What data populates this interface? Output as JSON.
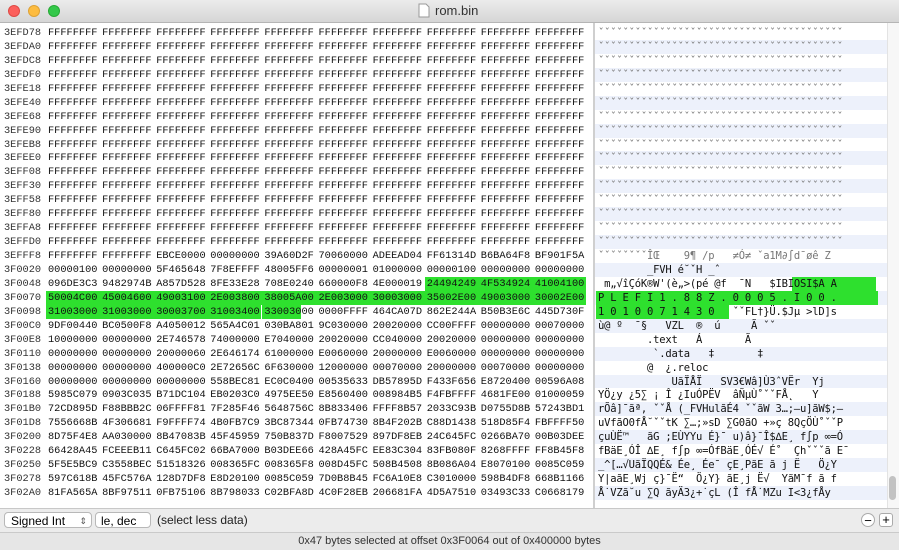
{
  "window": {
    "title": "rom.bin"
  },
  "rows": [
    {
      "offset": "3EFD78",
      "hex": [
        "FFFFFFFF",
        "FFFFFFFF",
        "FFFFFFFF",
        "FFFFFFFF",
        "FFFFFFFF",
        "FFFFFFFF",
        "FFFFFFFF",
        "FFFFFFFF",
        "FFFFFFFF",
        "FFFFFFFF"
      ],
      "ascii": "ˇˇˇˇˇˇˇˇˇˇˇˇˇˇˇˇˇˇˇˇˇˇˇˇˇˇˇˇˇˇˇˇˇˇˇˇˇˇˇˇ"
    },
    {
      "offset": "3EFDA0",
      "hex": [
        "FFFFFFFF",
        "FFFFFFFF",
        "FFFFFFFF",
        "FFFFFFFF",
        "FFFFFFFF",
        "FFFFFFFF",
        "FFFFFFFF",
        "FFFFFFFF",
        "FFFFFFFF",
        "FFFFFFFF"
      ],
      "ascii": "ˇˇˇˇˇˇˇˇˇˇˇˇˇˇˇˇˇˇˇˇˇˇˇˇˇˇˇˇˇˇˇˇˇˇˇˇˇˇˇˇ"
    },
    {
      "offset": "3EFDC8",
      "hex": [
        "FFFFFFFF",
        "FFFFFFFF",
        "FFFFFFFF",
        "FFFFFFFF",
        "FFFFFFFF",
        "FFFFFFFF",
        "FFFFFFFF",
        "FFFFFFFF",
        "FFFFFFFF",
        "FFFFFFFF"
      ],
      "ascii": "ˇˇˇˇˇˇˇˇˇˇˇˇˇˇˇˇˇˇˇˇˇˇˇˇˇˇˇˇˇˇˇˇˇˇˇˇˇˇˇˇ"
    },
    {
      "offset": "3EFDF0",
      "hex": [
        "FFFFFFFF",
        "FFFFFFFF",
        "FFFFFFFF",
        "FFFFFFFF",
        "FFFFFFFF",
        "FFFFFFFF",
        "FFFFFFFF",
        "FFFFFFFF",
        "FFFFFFFF",
        "FFFFFFFF"
      ],
      "ascii": "ˇˇˇˇˇˇˇˇˇˇˇˇˇˇˇˇˇˇˇˇˇˇˇˇˇˇˇˇˇˇˇˇˇˇˇˇˇˇˇˇ"
    },
    {
      "offset": "3EFE18",
      "hex": [
        "FFFFFFFF",
        "FFFFFFFF",
        "FFFFFFFF",
        "FFFFFFFF",
        "FFFFFFFF",
        "FFFFFFFF",
        "FFFFFFFF",
        "FFFFFFFF",
        "FFFFFFFF",
        "FFFFFFFF"
      ],
      "ascii": "ˇˇˇˇˇˇˇˇˇˇˇˇˇˇˇˇˇˇˇˇˇˇˇˇˇˇˇˇˇˇˇˇˇˇˇˇˇˇˇˇ"
    },
    {
      "offset": "3EFE40",
      "hex": [
        "FFFFFFFF",
        "FFFFFFFF",
        "FFFFFFFF",
        "FFFFFFFF",
        "FFFFFFFF",
        "FFFFFFFF",
        "FFFFFFFF",
        "FFFFFFFF",
        "FFFFFFFF",
        "FFFFFFFF"
      ],
      "ascii": "ˇˇˇˇˇˇˇˇˇˇˇˇˇˇˇˇˇˇˇˇˇˇˇˇˇˇˇˇˇˇˇˇˇˇˇˇˇˇˇˇ"
    },
    {
      "offset": "3EFE68",
      "hex": [
        "FFFFFFFF",
        "FFFFFFFF",
        "FFFFFFFF",
        "FFFFFFFF",
        "FFFFFFFF",
        "FFFFFFFF",
        "FFFFFFFF",
        "FFFFFFFF",
        "FFFFFFFF",
        "FFFFFFFF"
      ],
      "ascii": "ˇˇˇˇˇˇˇˇˇˇˇˇˇˇˇˇˇˇˇˇˇˇˇˇˇˇˇˇˇˇˇˇˇˇˇˇˇˇˇˇ"
    },
    {
      "offset": "3EFE90",
      "hex": [
        "FFFFFFFF",
        "FFFFFFFF",
        "FFFFFFFF",
        "FFFFFFFF",
        "FFFFFFFF",
        "FFFFFFFF",
        "FFFFFFFF",
        "FFFFFFFF",
        "FFFFFFFF",
        "FFFFFFFF"
      ],
      "ascii": "ˇˇˇˇˇˇˇˇˇˇˇˇˇˇˇˇˇˇˇˇˇˇˇˇˇˇˇˇˇˇˇˇˇˇˇˇˇˇˇˇ"
    },
    {
      "offset": "3EFEB8",
      "hex": [
        "FFFFFFFF",
        "FFFFFFFF",
        "FFFFFFFF",
        "FFFFFFFF",
        "FFFFFFFF",
        "FFFFFFFF",
        "FFFFFFFF",
        "FFFFFFFF",
        "FFFFFFFF",
        "FFFFFFFF"
      ],
      "ascii": "ˇˇˇˇˇˇˇˇˇˇˇˇˇˇˇˇˇˇˇˇˇˇˇˇˇˇˇˇˇˇˇˇˇˇˇˇˇˇˇˇ"
    },
    {
      "offset": "3EFEE0",
      "hex": [
        "FFFFFFFF",
        "FFFFFFFF",
        "FFFFFFFF",
        "FFFFFFFF",
        "FFFFFFFF",
        "FFFFFFFF",
        "FFFFFFFF",
        "FFFFFFFF",
        "FFFFFFFF",
        "FFFFFFFF"
      ],
      "ascii": "ˇˇˇˇˇˇˇˇˇˇˇˇˇˇˇˇˇˇˇˇˇˇˇˇˇˇˇˇˇˇˇˇˇˇˇˇˇˇˇˇ"
    },
    {
      "offset": "3EFF08",
      "hex": [
        "FFFFFFFF",
        "FFFFFFFF",
        "FFFFFFFF",
        "FFFFFFFF",
        "FFFFFFFF",
        "FFFFFFFF",
        "FFFFFFFF",
        "FFFFFFFF",
        "FFFFFFFF",
        "FFFFFFFF"
      ],
      "ascii": "ˇˇˇˇˇˇˇˇˇˇˇˇˇˇˇˇˇˇˇˇˇˇˇˇˇˇˇˇˇˇˇˇˇˇˇˇˇˇˇˇ"
    },
    {
      "offset": "3EFF30",
      "hex": [
        "FFFFFFFF",
        "FFFFFFFF",
        "FFFFFFFF",
        "FFFFFFFF",
        "FFFFFFFF",
        "FFFFFFFF",
        "FFFFFFFF",
        "FFFFFFFF",
        "FFFFFFFF",
        "FFFFFFFF"
      ],
      "ascii": "ˇˇˇˇˇˇˇˇˇˇˇˇˇˇˇˇˇˇˇˇˇˇˇˇˇˇˇˇˇˇˇˇˇˇˇˇˇˇˇˇ"
    },
    {
      "offset": "3EFF58",
      "hex": [
        "FFFFFFFF",
        "FFFFFFFF",
        "FFFFFFFF",
        "FFFFFFFF",
        "FFFFFFFF",
        "FFFFFFFF",
        "FFFFFFFF",
        "FFFFFFFF",
        "FFFFFFFF",
        "FFFFFFFF"
      ],
      "ascii": "ˇˇˇˇˇˇˇˇˇˇˇˇˇˇˇˇˇˇˇˇˇˇˇˇˇˇˇˇˇˇˇˇˇˇˇˇˇˇˇˇ"
    },
    {
      "offset": "3EFF80",
      "hex": [
        "FFFFFFFF",
        "FFFFFFFF",
        "FFFFFFFF",
        "FFFFFFFF",
        "FFFFFFFF",
        "FFFFFFFF",
        "FFFFFFFF",
        "FFFFFFFF",
        "FFFFFFFF",
        "FFFFFFFF"
      ],
      "ascii": "ˇˇˇˇˇˇˇˇˇˇˇˇˇˇˇˇˇˇˇˇˇˇˇˇˇˇˇˇˇˇˇˇˇˇˇˇˇˇˇˇ"
    },
    {
      "offset": "3EFFA8",
      "hex": [
        "FFFFFFFF",
        "FFFFFFFF",
        "FFFFFFFF",
        "FFFFFFFF",
        "FFFFFFFF",
        "FFFFFFFF",
        "FFFFFFFF",
        "FFFFFFFF",
        "FFFFFFFF",
        "FFFFFFFF"
      ],
      "ascii": "ˇˇˇˇˇˇˇˇˇˇˇˇˇˇˇˇˇˇˇˇˇˇˇˇˇˇˇˇˇˇˇˇˇˇˇˇˇˇˇˇ"
    },
    {
      "offset": "3EFFD0",
      "hex": [
        "FFFFFFFF",
        "FFFFFFFF",
        "FFFFFFFF",
        "FFFFFFFF",
        "FFFFFFFF",
        "FFFFFFFF",
        "FFFFFFFF",
        "FFFFFFFF",
        "FFFFFFFF",
        "FFFFFFFF"
      ],
      "ascii": "ˇˇˇˇˇˇˇˇˇˇˇˇˇˇˇˇˇˇˇˇˇˇˇˇˇˇˇˇˇˇˇˇˇˇˇˇˇˇˇˇ"
    },
    {
      "offset": "3EFFF8",
      "hex": [
        "FFFFFFFF",
        "FFFFFFFF",
        "EBCE0000",
        "00000000",
        "39A60D2F",
        "70060000",
        "ADEEAD04",
        "FF61314D",
        "B6BA64F8",
        "BF901F5A"
      ],
      "ascii": "ˇˇˇˇˇˇˇˇÎŒ    9¶ /p   ≠Ó≠ ˇa1M∂∫d¯øê Z"
    },
    {
      "offset": "3F0020",
      "hex": [
        "00000100",
        "00000000",
        "5F465648",
        "7F8EFFFF",
        "48005FF6",
        "00000001",
        "01000000",
        "00000100",
        "00000000",
        "00000000"
      ],
      "ascii": "        _FVH é˘ˇH _ˆ"
    },
    {
      "offset": "3F0048",
      "hex": [
        "096DE3C3",
        "9482974B",
        "A857D528",
        "8FE33E28",
        "708E0240",
        "660000F8",
        "4E000019",
        "24494249",
        "4F534924",
        "41004100"
      ],
      "ascii": " m„√îÇóK®W'(è„>(pé @f  ¯N   $IBIOSI$A A"
    },
    {
      "offset": "3F0070",
      "hex": [
        "50004C00",
        "45004600",
        "49003100",
        "2E003800",
        "38005A00",
        "2E003000",
        "30003000",
        "35002E00",
        "49003000",
        "30002E00"
      ],
      "ascii": "P L E F I 1 . 8 8 Z . 0 0 0 5 . I 0 0 ."
    },
    {
      "offset": "3F0098",
      "hex": [
        "31003000",
        "31003000",
        "30003700",
        "31003400",
        "33003000",
        "0000FFFF",
        "464CA07D",
        "862E244A",
        "B50B3E6C",
        "445D730F"
      ],
      "ascii": "1 0 1 0 0 7 1 4 3 0   ˇˇFL†}Ü.$Jµ >lD]s"
    },
    {
      "offset": "3F00C0",
      "hex": [
        "9DF00440",
        "BC0500F8",
        "A4050012",
        "565A4C01",
        "030BA801",
        "9C030000",
        "20020000",
        "CC00FFFF",
        "00000000",
        "00070000"
      ],
      "ascii": "ù@ º  ¯§   VZL  ®  ú     Ã ˇˇ"
    },
    {
      "offset": "3F00E8",
      "hex": [
        "10000000",
        "00000000",
        "2E746578",
        "74000000",
        "E7040000",
        "20020000",
        "CC040000",
        "20020000",
        "00000000",
        "00000000"
      ],
      "ascii": "        .text   Á       Ã"
    },
    {
      "offset": "3F0110",
      "hex": [
        "00000000",
        "00000000",
        "20000060",
        "2E646174",
        "61000000",
        "E0060000",
        "20000000",
        "E0060000",
        "00000000",
        "00000000"
      ],
      "ascii": "         `.data   ‡       ‡"
    },
    {
      "offset": "3F0138",
      "hex": [
        "00000000",
        "00000000",
        "400000C0",
        "2E72656C",
        "6F630000",
        "12000000",
        "00070000",
        "20000000",
        "00070000",
        "00000000"
      ],
      "ascii": "        @  ¿.reloc"
    },
    {
      "offset": "3F0160",
      "hex": [
        "00000000",
        "00000000",
        "00000000",
        "558BEC81",
        "EC0C0400",
        "00535633",
        "DB57895D",
        "F433F656",
        "E8720400",
        "00596A08"
      ],
      "ascii": "            UãÏÅÏ   SV3€Wâ]Ù3ˆVËr  Yj"
    },
    {
      "offset": "3F0188",
      "hex": [
        "5985C079",
        "0903C035",
        "B71DC104",
        "EB0203C0",
        "4975EE50",
        "E8560400",
        "008984B5",
        "F4FBFFFF",
        "4681FE00",
        "01000059"
      ],
      "ascii": "YÖ¿y ¿5∑ ¡ Î ¿IuÓPËV  âÑµÙ˚ˇˇFÅ˛   Y"
    },
    {
      "offset": "3F01B0",
      "hex": [
        "72CD895D",
        "F88BBB2C",
        "06FFFF81",
        "7F285F46",
        "5648756C",
        "8B833406",
        "FFFF8B57",
        "2033C93B",
        "D0755D8B",
        "57243BD1"
      ],
      "ascii": "rÕâ]¯ãª, ˇˇÅ (_FVHulãÉ4 ˇˇãW 3…;–u]ãW$;—"
    },
    {
      "offset": "3F01D8",
      "hex": [
        "7556668B",
        "4F306681",
        "F9FFFF74",
        "4B0FB7C9",
        "3BC87344",
        "0FB74730",
        "8B4F202B",
        "C88D1438",
        "518D85F4",
        "FBFFFF50"
      ],
      "ascii": "uVfãO0fÅ˘ˇˇtK ∑…;»sD ∑G0ãO +»ç 8QçÖÙ˚ˇˇP"
    },
    {
      "offset": "3F0200",
      "hex": [
        "8D75F4E8",
        "AA030000",
        "8B47083B",
        "45F45959",
        "750B837D",
        "F8007529",
        "897DF8EB",
        "24C645FC",
        "0266BA70",
        "00B03DEE"
      ],
      "ascii": "çuÙË™   ãG ;EÙYYu É}¯ u)â}¯Î$∆E¸ f∫p ∞=Ó"
    },
    {
      "offset": "3F0228",
      "hex": [
        "66428A45",
        "FCEEEB11",
        "C645FC02",
        "66BA7000",
        "B03DEE66",
        "428A45FC",
        "EE83C304",
        "83FB080F",
        "8268FFFF",
        "FF8B45F8"
      ],
      "ascii": "fBäE¸ÓÎ ∆E¸ f∫p ∞=ÓfBäE¸ÓÉ√ É˚  Çhˇˇˇã E¯"
    },
    {
      "offset": "3F0250",
      "hex": [
        "5F5E5BC9",
        "C3558BEC",
        "51518326",
        "008365FC",
        "008365F8",
        "008D45FC",
        "508B4508",
        "8B086A04",
        "E8070100",
        "0085C059"
      ],
      "ascii": "_^[…√UãÏQQÉ& Ée¸ Ée¯ çE¸PãE ã j Ë   Ö¿Y"
    },
    {
      "offset": "3F0278",
      "hex": [
        "597C618B",
        "45FC576A",
        "128D7DF8",
        "E8D20100",
        "0085C059",
        "7D0B8B45",
        "FC6A10E8",
        "C3010000",
        "598B4DF8",
        "668B1166"
      ],
      "ascii": "Y|aãE¸Wj ç}¯Ë“  Ö¿Y} ãE¸j Ë√  YãM¯f ã f"
    },
    {
      "offset": "3F02A0",
      "hex": [
        "81FA565A",
        "8BF97511",
        "0FB75106",
        "8B798033",
        "C02BFA8D",
        "4C0F28EB",
        "206681FA",
        "4D5A7510",
        "03493C33",
        "C0668179"
      ],
      "ascii": "Å˙VZã˘u ∑Q ãyÄ3¿+˙çL (Î fÅ˙MZu I<3¿fÅy"
    }
  ],
  "toolbar": {
    "type_select": "Signed Int",
    "endian_select": "le, dec",
    "hint": "(select less data)"
  },
  "status": "0x47 bytes selected at offset 0x3F0064 out of 0x400000 bytes"
}
